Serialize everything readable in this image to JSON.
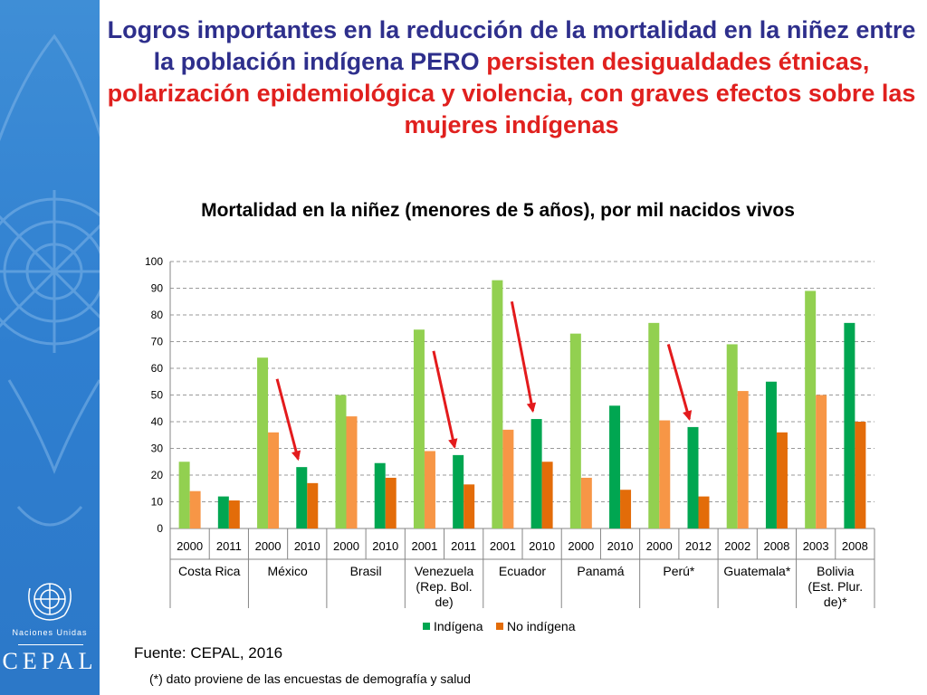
{
  "headline": {
    "blue_part1": "Logros importantes en la reducción de la mortalidad en la niñez entre la población indígena PERO",
    "red_part": "persisten desigualdades étnicas, polarización epidemiológica y violencia, con graves efectos sobre las mujeres indígenas"
  },
  "branding": {
    "un_text": "Naciones Unidas",
    "cepal_text": "CEPAL"
  },
  "footer": {
    "source": "Fuente: CEPAL, 2016",
    "note": "(*) dato proviene de las encuestas de demografía y salud"
  },
  "colors": {
    "indigenous": "#92d050",
    "indigenous_dark": "#00a651",
    "non_indigenous": "#f79646",
    "non_indigenous_dark": "#e36c09",
    "arrow": "#e31a1c",
    "headline_blue": "#2e2f8c",
    "headline_red": "#e0201e",
    "sidebar": "#2f7fd0"
  },
  "chart_data": {
    "type": "bar",
    "title": "Mortalidad en la niñez (menores de 5 años), por mil nacidos vivos",
    "ylim": [
      0,
      100
    ],
    "yticks": [
      0,
      10,
      20,
      30,
      40,
      50,
      60,
      70,
      80,
      90,
      100
    ],
    "grid": true,
    "legend_position": "bottom",
    "series": [
      {
        "name": "Indígena",
        "color": "#00a651"
      },
      {
        "name": "No indígena",
        "color": "#e36c09"
      }
    ],
    "groups": [
      {
        "country": "Costa Rica",
        "years": [
          {
            "year": "2000",
            "indigena": 25,
            "no_indigena": 14
          },
          {
            "year": "2011",
            "indigena": 12,
            "no_indigena": 10.5
          }
        ]
      },
      {
        "country": "México",
        "years": [
          {
            "year": "2000",
            "indigena": 64,
            "no_indigena": 36
          },
          {
            "year": "2010",
            "indigena": 23,
            "no_indigena": 17
          }
        ]
      },
      {
        "country": "Brasil",
        "years": [
          {
            "year": "2000",
            "indigena": 50,
            "no_indigena": 42
          },
          {
            "year": "2010",
            "indigena": 24.5,
            "no_indigena": 19
          }
        ]
      },
      {
        "country": "Venezuela (Rep. Bol. de)",
        "years": [
          {
            "year": "2001",
            "indigena": 74.5,
            "no_indigena": 29
          },
          {
            "year": "2011",
            "indigena": 27.5,
            "no_indigena": 16.5
          }
        ]
      },
      {
        "country": "Ecuador",
        "years": [
          {
            "year": "2001",
            "indigena": 93,
            "no_indigena": 37
          },
          {
            "year": "2010",
            "indigena": 41,
            "no_indigena": 25
          }
        ]
      },
      {
        "country": "Panamá",
        "years": [
          {
            "year": "2000",
            "indigena": 73,
            "no_indigena": 19
          },
          {
            "year": "2010",
            "indigena": 46,
            "no_indigena": 14.5
          }
        ]
      },
      {
        "country": "Perú*",
        "years": [
          {
            "year": "2000",
            "indigena": 77,
            "no_indigena": 40.5
          },
          {
            "year": "2012",
            "indigena": 38,
            "no_indigena": 12
          }
        ]
      },
      {
        "country": "Guatemala*",
        "years": [
          {
            "year": "2002",
            "indigena": 69,
            "no_indigena": 51.5
          },
          {
            "year": "2008",
            "indigena": 55,
            "no_indigena": 36
          }
        ]
      },
      {
        "country": "Bolivia (Est. Plur. de)*",
        "years": [
          {
            "year": "2003",
            "indigena": 89,
            "no_indigena": 50
          },
          {
            "year": "2008",
            "indigena": 77,
            "no_indigena": 40
          }
        ]
      }
    ],
    "annotations": [
      {
        "type": "arrow",
        "group": "México",
        "meaning": "decline"
      },
      {
        "type": "arrow",
        "group": "Venezuela (Rep. Bol. de)",
        "meaning": "decline"
      },
      {
        "type": "arrow",
        "group": "Ecuador",
        "meaning": "decline"
      },
      {
        "type": "arrow",
        "group": "Perú*",
        "meaning": "decline"
      }
    ]
  }
}
